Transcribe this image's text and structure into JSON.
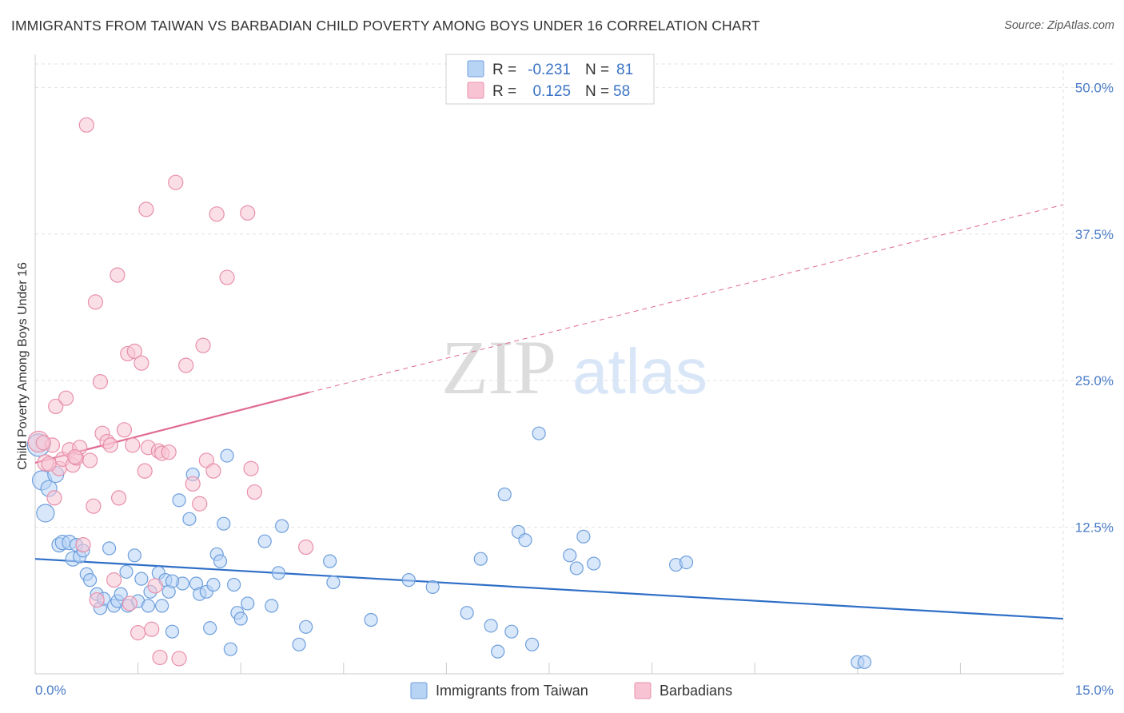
{
  "title": "IMMIGRANTS FROM TAIWAN VS BARBADIAN CHILD POVERTY AMONG BOYS UNDER 16 CORRELATION CHART",
  "source": "Source: ZipAtlas.com",
  "watermark": {
    "zip": "ZIP",
    "atlas": "atlas"
  },
  "chart_data": {
    "type": "scatter",
    "ylabel": "Child Poverty Among Boys Under 16",
    "xlim": [
      0,
      15
    ],
    "ylim": [
      0,
      52
    ],
    "x_tick_labels": {
      "min": "0.0%",
      "max": "15.0%"
    },
    "x_minor_ticks": [
      1.5,
      3.0,
      4.5,
      6.0,
      7.5,
      9.0,
      10.5,
      12.0,
      13.5
    ],
    "y_ticks": [
      {
        "value": 12.5,
        "label": "12.5%"
      },
      {
        "value": 25.0,
        "label": "25.0%"
      },
      {
        "value": 37.5,
        "label": "37.5%"
      },
      {
        "value": 50.0,
        "label": "50.0%"
      }
    ],
    "legend_stats": [
      {
        "r_label": "R =",
        "r_value": "-0.231",
        "n_label": "N =",
        "n_value": "81"
      },
      {
        "r_label": "R =",
        "r_value": "0.125",
        "n_label": "N =",
        "n_value": "58"
      }
    ],
    "colors": {
      "taiwan_fill": "#b8d4f5",
      "taiwan_stroke": "#6e9fdc",
      "taiwan_line": "#2f6fc7",
      "barbadian_fill": "#f8c4d4",
      "barbadian_stroke": "#e890ab",
      "barbadian_line": "#e06a93",
      "grid": "#e2e2e2",
      "tick_text": "#4a7cc7"
    },
    "series": [
      {
        "name": "Immigrants from Taiwan",
        "trend": {
          "x0": 0,
          "y0": 9.8,
          "x1": 15,
          "y1": 4.7,
          "style": "solid"
        },
        "points": [
          [
            0.05,
            19.5,
            14
          ],
          [
            0.1,
            16.5,
            12
          ],
          [
            0.15,
            13.7,
            11
          ],
          [
            0.2,
            15.8,
            10
          ],
          [
            0.3,
            17.0,
            10
          ],
          [
            0.35,
            11.0,
            9
          ],
          [
            0.4,
            11.2,
            9
          ],
          [
            0.5,
            11.2,
            9
          ],
          [
            0.55,
            9.8,
            9
          ],
          [
            0.6,
            11.0,
            8
          ],
          [
            0.65,
            10.0,
            8
          ],
          [
            0.7,
            10.5,
            8
          ],
          [
            0.75,
            8.5,
            8
          ],
          [
            0.8,
            8.0,
            8
          ],
          [
            0.9,
            6.8,
            8
          ],
          [
            0.95,
            5.6,
            8
          ],
          [
            1.0,
            6.4,
            8
          ],
          [
            1.08,
            10.7,
            8
          ],
          [
            1.15,
            5.8,
            8
          ],
          [
            1.2,
            6.2,
            8
          ],
          [
            1.25,
            6.8,
            8
          ],
          [
            1.35,
            5.8,
            8
          ],
          [
            1.33,
            8.7,
            8
          ],
          [
            1.45,
            10.1,
            8
          ],
          [
            1.5,
            6.2,
            8
          ],
          [
            1.55,
            8.1,
            8
          ],
          [
            1.65,
            5.8,
            8
          ],
          [
            1.68,
            7.0,
            8
          ],
          [
            1.8,
            8.6,
            8
          ],
          [
            1.85,
            5.8,
            8
          ],
          [
            1.9,
            8.0,
            8
          ],
          [
            1.95,
            7.0,
            8
          ],
          [
            2.0,
            3.6,
            8
          ],
          [
            2.1,
            14.8,
            8
          ],
          [
            2.15,
            7.7,
            8
          ],
          [
            2.25,
            13.2,
            8
          ],
          [
            2.3,
            17.0,
            8
          ],
          [
            2.35,
            7.7,
            8
          ],
          [
            2.4,
            6.8,
            8
          ],
          [
            2.5,
            7.0,
            8
          ],
          [
            2.55,
            3.9,
            8
          ],
          [
            2.6,
            7.6,
            8
          ],
          [
            2.65,
            10.2,
            8
          ],
          [
            2.7,
            9.6,
            8
          ],
          [
            2.75,
            12.8,
            8
          ],
          [
            2.8,
            18.6,
            8
          ],
          [
            2.85,
            2.1,
            8
          ],
          [
            2.9,
            7.6,
            8
          ],
          [
            2.95,
            5.2,
            8
          ],
          [
            3.0,
            4.7,
            8
          ],
          [
            3.1,
            6.0,
            8
          ],
          [
            3.35,
            11.3,
            8
          ],
          [
            3.45,
            5.8,
            8
          ],
          [
            3.55,
            8.6,
            8
          ],
          [
            3.6,
            12.6,
            8
          ],
          [
            3.85,
            2.5,
            8
          ],
          [
            3.95,
            4.0,
            8
          ],
          [
            4.3,
            9.6,
            8
          ],
          [
            4.35,
            7.8,
            8
          ],
          [
            4.9,
            4.6,
            8
          ],
          [
            5.45,
            8.0,
            8
          ],
          [
            5.8,
            7.4,
            8
          ],
          [
            6.3,
            5.2,
            8
          ],
          [
            6.5,
            9.8,
            8
          ],
          [
            6.65,
            4.1,
            8
          ],
          [
            6.75,
            1.9,
            8
          ],
          [
            6.85,
            15.3,
            8
          ],
          [
            6.95,
            3.6,
            8
          ],
          [
            7.05,
            12.1,
            8
          ],
          [
            7.15,
            11.4,
            8
          ],
          [
            7.25,
            2.5,
            8
          ],
          [
            7.35,
            20.5,
            8
          ],
          [
            7.8,
            10.1,
            8
          ],
          [
            7.9,
            9.0,
            8
          ],
          [
            8.0,
            11.7,
            8
          ],
          [
            8.15,
            9.4,
            8
          ],
          [
            9.35,
            9.3,
            8
          ],
          [
            9.5,
            9.5,
            8
          ],
          [
            12.0,
            1.0,
            8
          ],
          [
            12.1,
            1.0,
            8
          ],
          [
            2.0,
            7.9,
            8
          ]
        ]
      },
      {
        "name": "Barbadians",
        "trend": {
          "x0": 0,
          "y0": 18.0,
          "x1": 4.0,
          "y1": 24.0,
          "x_end": 15,
          "y_end": 40.0,
          "style": "solid-then-dashed"
        },
        "points": [
          [
            0.05,
            19.8,
            13
          ],
          [
            0.15,
            18.0,
            10
          ],
          [
            0.25,
            19.5,
            9
          ],
          [
            0.35,
            17.5,
            9
          ],
          [
            0.3,
            22.8,
            9
          ],
          [
            0.4,
            18.3,
            9
          ],
          [
            0.45,
            23.5,
            9
          ],
          [
            0.5,
            19.1,
            9
          ],
          [
            0.55,
            17.8,
            9
          ],
          [
            0.6,
            18.4,
            9
          ],
          [
            0.65,
            19.3,
            9
          ],
          [
            0.7,
            11.0,
            9
          ],
          [
            0.75,
            46.8,
            9
          ],
          [
            0.8,
            18.2,
            9
          ],
          [
            0.85,
            14.3,
            9
          ],
          [
            0.88,
            31.7,
            9
          ],
          [
            0.9,
            6.3,
            9
          ],
          [
            0.95,
            24.9,
            9
          ],
          [
            0.98,
            20.5,
            9
          ],
          [
            1.05,
            19.8,
            9
          ],
          [
            1.1,
            19.5,
            9
          ],
          [
            1.15,
            8.0,
            9
          ],
          [
            1.2,
            34.0,
            9
          ],
          [
            1.22,
            15.0,
            9
          ],
          [
            1.3,
            20.8,
            9
          ],
          [
            1.35,
            27.3,
            9
          ],
          [
            1.38,
            6.0,
            9
          ],
          [
            1.42,
            19.5,
            9
          ],
          [
            1.45,
            27.5,
            9
          ],
          [
            1.5,
            3.5,
            9
          ],
          [
            1.55,
            26.5,
            9
          ],
          [
            1.6,
            17.3,
            9
          ],
          [
            1.62,
            39.6,
            9
          ],
          [
            1.65,
            19.3,
            9
          ],
          [
            1.7,
            3.8,
            9
          ],
          [
            1.75,
            7.5,
            9
          ],
          [
            1.8,
            19.0,
            9
          ],
          [
            1.82,
            1.4,
            9
          ],
          [
            1.85,
            18.8,
            9
          ],
          [
            1.95,
            18.9,
            9
          ],
          [
            2.05,
            41.9,
            9
          ],
          [
            2.1,
            1.3,
            9
          ],
          [
            2.2,
            26.3,
            9
          ],
          [
            2.3,
            16.2,
            9
          ],
          [
            2.4,
            14.5,
            9
          ],
          [
            2.45,
            28.0,
            9
          ],
          [
            2.5,
            18.2,
            9
          ],
          [
            2.6,
            17.3,
            9
          ],
          [
            2.65,
            39.2,
            9
          ],
          [
            2.8,
            33.8,
            9
          ],
          [
            3.1,
            39.3,
            9
          ],
          [
            3.15,
            17.5,
            9
          ],
          [
            3.2,
            15.5,
            9
          ],
          [
            3.95,
            10.8,
            9
          ],
          [
            0.2,
            17.9,
            9
          ],
          [
            0.12,
            19.7,
            9
          ],
          [
            0.28,
            15.0,
            9
          ],
          [
            0.58,
            18.5,
            9
          ]
        ]
      }
    ]
  },
  "bottom_legend": [
    {
      "label": "Immigrants from Taiwan"
    },
    {
      "label": "Barbadians"
    }
  ]
}
